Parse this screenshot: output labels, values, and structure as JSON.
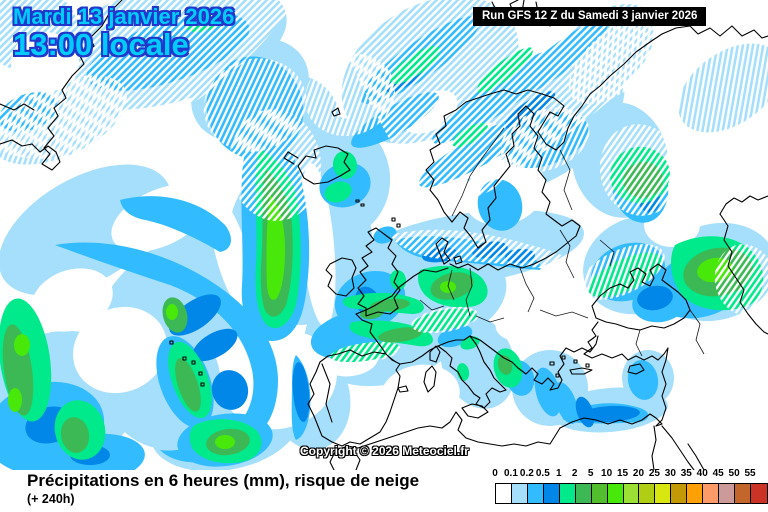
{
  "header": {
    "date_line1": "Mardi 13 janvier 2026",
    "date_line2": "13:00 locale",
    "run_info": "Run GFS 12 Z du Samedi 3 janvier 2026"
  },
  "map": {
    "copyright": "Copyright © 2026 Meteociel.fr",
    "region": "Europe / North Atlantic",
    "hatch_meaning": "risque de neige (snow risk hatching)"
  },
  "caption": {
    "title": "Précipitations en 6 heures (mm), risque de neige",
    "subtitle": "(+ 240h)"
  },
  "legend": {
    "values": [
      "0",
      "0.1",
      "0.2",
      "0.5",
      "1",
      "2",
      "5",
      "10",
      "15",
      "20",
      "25",
      "30",
      "35",
      "40",
      "45",
      "50",
      "55"
    ],
    "colors": [
      "#FFFFFF",
      "#A5DFFC",
      "#33BBFF",
      "#0087E8",
      "#00E98A",
      "#3CB954",
      "#52BE2E",
      "#49E80B",
      "#9CDF35",
      "#AFCE14",
      "#D7E70F",
      "#C39A06",
      "#FFA007",
      "#FC9B67",
      "#CC9A99",
      "#C3662B",
      "#CB3327"
    ]
  },
  "colors": {
    "date_text": "#00CCFF",
    "date_outline": "#2238CC",
    "run_bg": "#000000",
    "run_text": "#FFFFFF",
    "coastline": "#000000",
    "precip_light": "#A5DFFC",
    "precip_cyan": "#33BBFF",
    "precip_blue": "#0087E8",
    "precip_spring": "#00E98A",
    "precip_green": "#3CB954",
    "precip_bright": "#49E80B"
  }
}
